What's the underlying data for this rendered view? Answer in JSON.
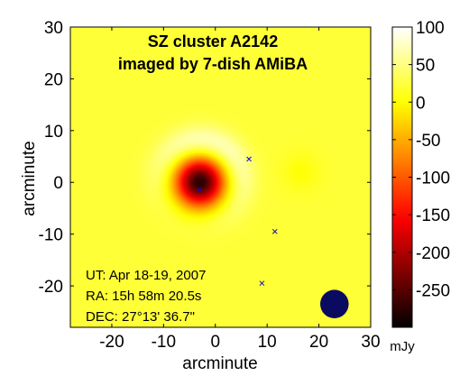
{
  "chart_data": {
    "type": "heatmap",
    "title_lines": [
      "SZ cluster A2142",
      "imaged by 7-dish AMiBA"
    ],
    "xlabel": "arcminute",
    "ylabel": "arcminute",
    "xlim": [
      -28,
      30
    ],
    "ylim": [
      -28,
      30
    ],
    "xticks": [
      -20,
      -10,
      0,
      10,
      20,
      30
    ],
    "yticks": [
      -20,
      -10,
      0,
      10,
      20,
      30
    ],
    "colorbar": {
      "range": [
        -300,
        100
      ],
      "ticks": [
        100,
        50,
        0,
        -50,
        -100,
        -150,
        -200,
        -250
      ],
      "unit": "mJy",
      "colormap": "hot"
    },
    "background_value": 22,
    "features": [
      {
        "kind": "decrement",
        "x": -3,
        "y": 0,
        "peak": -300,
        "sigma": 3.2
      },
      {
        "kind": "positive-ring",
        "x": -3,
        "y": 0,
        "radius": 8,
        "peak": 58,
        "width": 3
      },
      {
        "kind": "secondary-decrement",
        "x": 16.5,
        "y": 2,
        "peak": -20,
        "sigma": 2.5
      }
    ],
    "point_sources": [
      {
        "x": 6.5,
        "y": 4.5
      },
      {
        "x": 11.5,
        "y": -9.5
      },
      {
        "x": 9,
        "y": -19.5
      },
      {
        "x": -3,
        "y": -1.5
      }
    ],
    "beam": {
      "x": 23,
      "y": -23.5,
      "diameter": 5.5,
      "color": "#0a0a60"
    },
    "annotation": [
      "UT: Apr 18-19, 2007",
      "RA: 15h 58m 20.5s",
      "DEC: 27°13' 36.7\""
    ]
  }
}
